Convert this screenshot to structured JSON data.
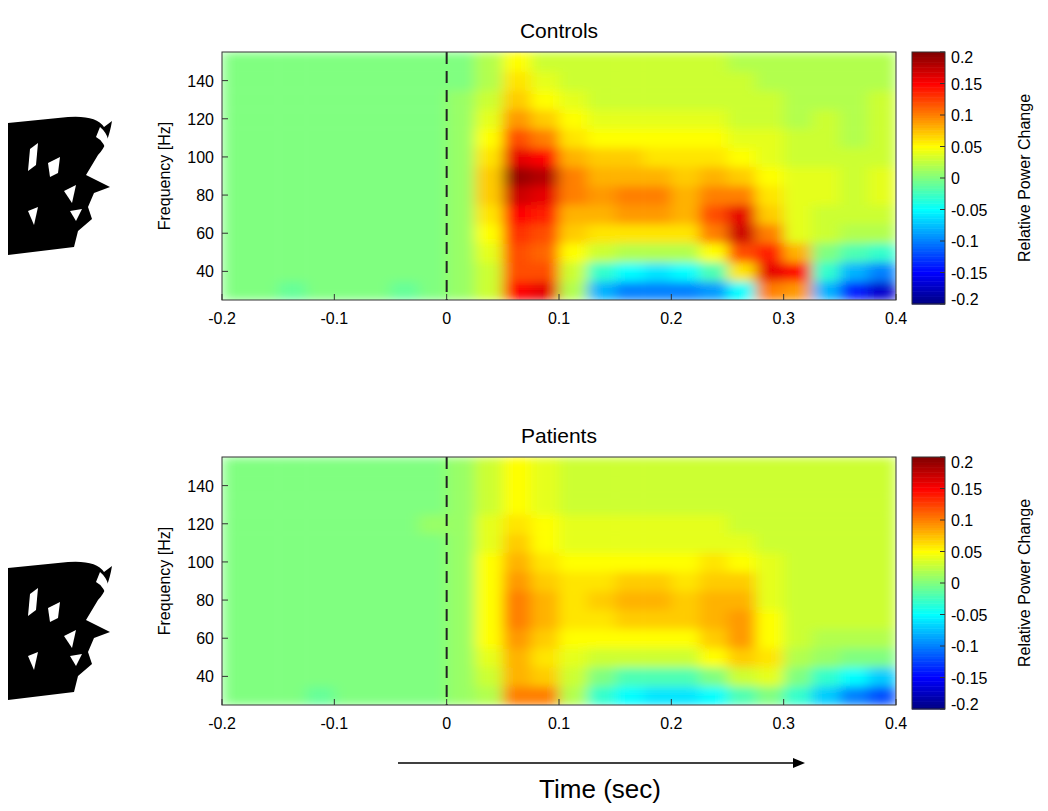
{
  "chart_data": [
    {
      "type": "heatmap",
      "title": "Controls",
      "y_label": "Frequency [Hz]",
      "x_bins": [
        -0.2,
        -0.175,
        -0.15,
        -0.125,
        -0.1,
        -0.075,
        -0.05,
        -0.025,
        0,
        0.025,
        0.05,
        0.075,
        0.1,
        0.125,
        0.15,
        0.175,
        0.2,
        0.225,
        0.25,
        0.275,
        0.3,
        0.325,
        0.35,
        0.375,
        0.4
      ],
      "y_bins": [
        25,
        35,
        45,
        55,
        65,
        75,
        85,
        95,
        105,
        115,
        125,
        135,
        145,
        155
      ],
      "xlim": [
        -0.2,
        0.4
      ],
      "xticks": [
        -0.2,
        -0.1,
        0,
        0.1,
        0.2,
        0.3,
        0.4
      ],
      "ylim": [
        25,
        155
      ],
      "yticks": [
        40,
        60,
        80,
        100,
        120,
        140
      ],
      "onset": 0,
      "values": [
        [
          0,
          0,
          -0.01,
          0,
          0,
          0,
          -0.01,
          0,
          0.01,
          0.03,
          0.15,
          0.16,
          0.02,
          -0.08,
          -0.1,
          -0.1,
          -0.1,
          -0.09,
          -0.05,
          0.1,
          0.09,
          -0.08,
          -0.14,
          -0.17
        ],
        [
          0,
          0,
          0,
          0,
          0,
          0,
          0,
          0,
          0.01,
          0.03,
          0.12,
          0.12,
          0.03,
          -0.03,
          -0.05,
          -0.06,
          -0.05,
          -0.02,
          0.06,
          0.16,
          0.15,
          -0.03,
          -0.08,
          -0.1
        ],
        [
          0,
          0,
          0,
          0,
          0,
          0,
          0,
          0,
          0.01,
          0.04,
          0.12,
          0.11,
          0.05,
          0.03,
          0.02,
          0.02,
          0.02,
          0.05,
          0.12,
          0.14,
          0.08,
          0,
          -0.02,
          -0.03
        ],
        [
          0,
          0,
          0,
          0,
          0,
          0,
          0,
          0,
          0.01,
          0.05,
          0.13,
          0.12,
          0.07,
          0.06,
          0.06,
          0.06,
          0.06,
          0.1,
          0.17,
          0.1,
          0.04,
          0.03,
          0.02,
          0.02
        ],
        [
          0,
          0,
          0,
          0,
          0,
          0,
          0,
          0,
          0.01,
          0.06,
          0.15,
          0.14,
          0.08,
          0.08,
          0.09,
          0.09,
          0.08,
          0.12,
          0.16,
          0.07,
          0.04,
          0.03,
          0.03,
          0.03
        ],
        [
          0,
          0,
          0,
          0,
          0,
          0,
          0,
          0,
          0.01,
          0.07,
          0.17,
          0.16,
          0.1,
          0.09,
          0.1,
          0.1,
          0.08,
          0.1,
          0.1,
          0.06,
          0.04,
          0.04,
          0.03,
          0.04
        ],
        [
          0,
          0,
          0,
          0,
          0,
          0,
          0,
          0,
          0.01,
          0.07,
          0.19,
          0.18,
          0.1,
          0.08,
          0.08,
          0.08,
          0.07,
          0.08,
          0.07,
          0.05,
          0.04,
          0.04,
          0.03,
          0.04
        ],
        [
          0,
          0,
          0,
          0,
          0,
          0,
          0,
          0,
          0.01,
          0.06,
          0.16,
          0.15,
          0.08,
          0.07,
          0.07,
          0.06,
          0.06,
          0.06,
          0.05,
          0.04,
          0.03,
          0.03,
          0.03,
          0.03
        ],
        [
          0,
          0,
          0,
          0,
          0,
          0,
          0,
          0,
          0.01,
          0.05,
          0.12,
          0.1,
          0.06,
          0.05,
          0.05,
          0.05,
          0.05,
          0.05,
          0.04,
          0.04,
          0.03,
          0.03,
          0.02,
          0.03
        ],
        [
          0,
          0,
          0,
          0,
          0,
          0,
          0,
          0,
          0.01,
          0.04,
          0.09,
          0.07,
          0.05,
          0.04,
          0.04,
          0.04,
          0.04,
          0.04,
          0.03,
          0.03,
          0.02,
          0.03,
          0.02,
          0.03
        ],
        [
          0,
          0,
          0,
          0,
          0,
          0,
          0,
          0,
          0.01,
          0.03,
          0.07,
          0.05,
          0.04,
          0.03,
          0.03,
          0.03,
          0.03,
          0.03,
          0.03,
          0.03,
          0.02,
          0.02,
          0.02,
          0.03
        ],
        [
          0,
          0,
          0,
          0,
          0,
          0,
          0,
          0,
          0,
          0.02,
          0.06,
          0.04,
          0.03,
          0.03,
          0.03,
          0.03,
          0.03,
          0.03,
          0.03,
          0.02,
          0.02,
          0.02,
          0.02,
          0.02
        ],
        [
          0,
          0,
          0,
          0,
          0,
          0,
          0,
          0,
          0,
          0.02,
          0.05,
          0.03,
          0.03,
          0.03,
          0.03,
          0.03,
          0.03,
          0.03,
          0.02,
          0.02,
          0.02,
          0.02,
          0.02,
          0.02
        ]
      ],
      "colorbar": {
        "label": "Relative Power Change",
        "range": [
          -0.2,
          0.2
        ],
        "ticks": [
          0.2,
          0.15,
          0.1,
          0.05,
          0,
          -0.05,
          -0.1,
          -0.15,
          -0.2
        ]
      }
    },
    {
      "type": "heatmap",
      "title": "Patients",
      "y_label": "Frequency [Hz]",
      "x_label": "Time (sec)",
      "x_bins": [
        -0.2,
        -0.175,
        -0.15,
        -0.125,
        -0.1,
        -0.075,
        -0.05,
        -0.025,
        0,
        0.025,
        0.05,
        0.075,
        0.1,
        0.125,
        0.15,
        0.175,
        0.2,
        0.225,
        0.25,
        0.275,
        0.3,
        0.325,
        0.35,
        0.375,
        0.4
      ],
      "y_bins": [
        25,
        35,
        45,
        55,
        65,
        75,
        85,
        95,
        105,
        115,
        125,
        135,
        145,
        155
      ],
      "xlim": [
        -0.2,
        0.4
      ],
      "xticks": [
        -0.2,
        -0.1,
        0,
        0.1,
        0.2,
        0.3,
        0.4
      ],
      "ylim": [
        25,
        155
      ],
      "yticks": [
        40,
        60,
        80,
        100,
        120,
        140
      ],
      "onset": 0,
      "values": [
        [
          0,
          0,
          0,
          -0.01,
          0,
          0,
          0,
          0,
          0.01,
          0.02,
          0.1,
          0.1,
          0.02,
          -0.03,
          -0.05,
          -0.06,
          -0.06,
          -0.05,
          -0.02,
          0,
          -0.03,
          -0.07,
          -0.1,
          -0.12
        ],
        [
          0,
          0,
          0,
          0,
          0,
          0,
          0,
          0,
          0.01,
          0.03,
          0.08,
          0.07,
          0.03,
          0,
          -0.02,
          -0.02,
          -0.02,
          0,
          0.03,
          0.04,
          0,
          -0.03,
          -0.05,
          -0.07
        ],
        [
          0,
          0,
          0,
          0,
          0,
          0,
          0,
          0,
          0.01,
          0.04,
          0.08,
          0.06,
          0.04,
          0.03,
          0.03,
          0.03,
          0.03,
          0.05,
          0.07,
          0.06,
          0.02,
          0.01,
          0,
          0
        ],
        [
          0,
          0,
          0,
          0,
          0,
          0,
          0,
          0,
          0.01,
          0.05,
          0.09,
          0.07,
          0.05,
          0.05,
          0.05,
          0.05,
          0.05,
          0.07,
          0.09,
          0.05,
          0.03,
          0.02,
          0.02,
          0.02
        ],
        [
          0,
          0,
          0,
          0,
          0,
          0,
          0,
          0,
          0.01,
          0.05,
          0.1,
          0.08,
          0.06,
          0.06,
          0.07,
          0.07,
          0.07,
          0.08,
          0.09,
          0.05,
          0.03,
          0.03,
          0.03,
          0.03
        ],
        [
          0,
          0,
          0,
          0,
          0,
          0,
          0,
          0,
          0.01,
          0.05,
          0.1,
          0.08,
          0.06,
          0.07,
          0.08,
          0.08,
          0.07,
          0.08,
          0.08,
          0.04,
          0.03,
          0.03,
          0.03,
          0.03
        ],
        [
          0,
          0,
          0,
          0,
          0,
          0,
          0,
          0,
          0.01,
          0.05,
          0.09,
          0.07,
          0.06,
          0.06,
          0.07,
          0.07,
          0.06,
          0.07,
          0.07,
          0.04,
          0.03,
          0.03,
          0.03,
          0.03
        ],
        [
          0,
          0,
          0,
          0,
          0,
          0,
          0,
          0,
          0.01,
          0.05,
          0.08,
          0.06,
          0.05,
          0.05,
          0.05,
          0.05,
          0.05,
          0.06,
          0.05,
          0.04,
          0.03,
          0.03,
          0.03,
          0.03
        ],
        [
          0,
          0,
          0,
          0,
          0,
          0,
          0,
          0,
          0.01,
          0.04,
          0.07,
          0.05,
          0.04,
          0.04,
          0.04,
          0.04,
          0.04,
          0.04,
          0.04,
          0.03,
          0.03,
          0.03,
          0.03,
          0.03
        ],
        [
          0,
          0,
          0,
          0,
          0,
          0,
          0,
          0.01,
          0.01,
          0.04,
          0.06,
          0.05,
          0.04,
          0.04,
          0.04,
          0.04,
          0.04,
          0.04,
          0.03,
          0.03,
          0.03,
          0.03,
          0.03,
          0.03
        ],
        [
          0,
          0,
          0,
          0,
          0,
          0,
          0,
          0,
          0.01,
          0.03,
          0.05,
          0.04,
          0.03,
          0.03,
          0.03,
          0.03,
          0.03,
          0.03,
          0.03,
          0.03,
          0.03,
          0.03,
          0.03,
          0.03
        ],
        [
          0,
          0,
          0,
          0,
          0,
          0,
          0,
          0,
          0.01,
          0.03,
          0.05,
          0.04,
          0.03,
          0.03,
          0.03,
          0.03,
          0.03,
          0.03,
          0.03,
          0.03,
          0.03,
          0.03,
          0.03,
          0.03
        ],
        [
          0,
          0,
          0,
          0,
          0,
          0,
          0,
          0,
          0.01,
          0.03,
          0.05,
          0.04,
          0.03,
          0.03,
          0.03,
          0.03,
          0.03,
          0.03,
          0.03,
          0.03,
          0.03,
          0.03,
          0.03,
          0.03
        ]
      ],
      "colorbar": {
        "label": "Relative Power Change",
        "range": [
          -0.2,
          0.2
        ],
        "ticks": [
          0.2,
          0.15,
          0.1,
          0.05,
          0,
          -0.05,
          -0.1,
          -0.15,
          -0.2
        ]
      }
    }
  ]
}
